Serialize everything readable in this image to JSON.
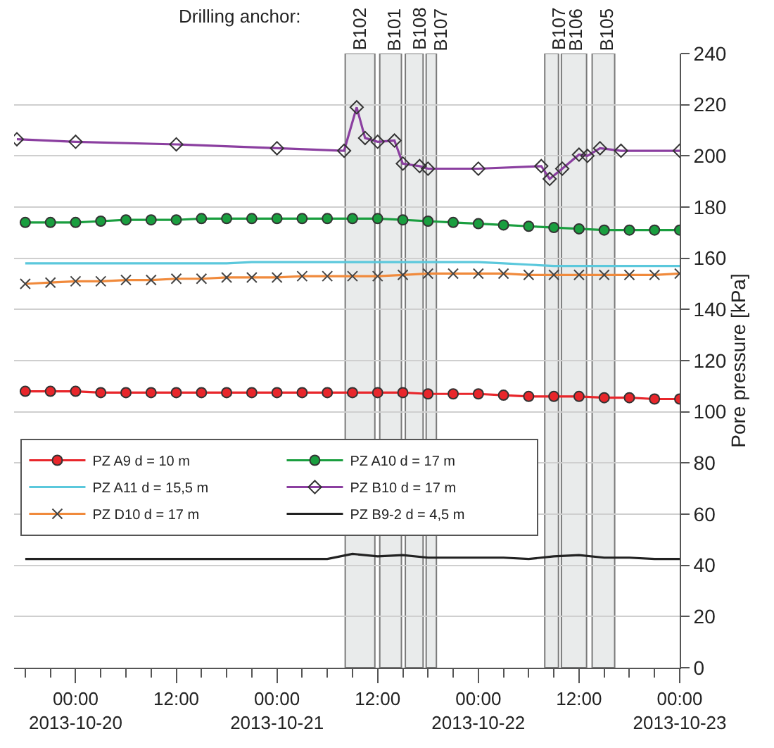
{
  "chart_data": {
    "type": "line",
    "ylabel": "Pore pressure [kPa]",
    "x": [
      "2013-10-19T18:00",
      "2013-10-19T21:00",
      "2013-10-20T00:00",
      "2013-10-20T03:00",
      "2013-10-20T06:00",
      "2013-10-20T09:00",
      "2013-10-20T12:00",
      "2013-10-20T15:00",
      "2013-10-20T18:00",
      "2013-10-20T21:00",
      "2013-10-21T00:00",
      "2013-10-21T03:00",
      "2013-10-21T06:00",
      "2013-10-21T09:00",
      "2013-10-21T12:00",
      "2013-10-21T15:00",
      "2013-10-21T18:00",
      "2013-10-21T21:00",
      "2013-10-22T00:00",
      "2013-10-22T03:00",
      "2013-10-22T06:00",
      "2013-10-22T09:00",
      "2013-10-22T12:00",
      "2013-10-22T15:00",
      "2013-10-22T18:00",
      "2013-10-22T21:00",
      "2013-10-23T00:00"
    ],
    "series": [
      {
        "name": "PZ A9 d = 10 m",
        "color": "#e8262b",
        "marker": "circle",
        "values": [
          108,
          108,
          108,
          107.5,
          107.5,
          107.5,
          107.5,
          107.5,
          107.5,
          107.5,
          107.5,
          107.5,
          107.5,
          107.5,
          107.5,
          107.5,
          107,
          107,
          107,
          106.5,
          106,
          106,
          106,
          105.5,
          105.5,
          105,
          105
        ]
      },
      {
        "name": "PZ A10 d = 17 m",
        "color": "#1a9e3f",
        "marker": "circle",
        "values": [
          174,
          174,
          174,
          174.5,
          175,
          175,
          175,
          175.5,
          175.5,
          175.5,
          175.5,
          175.5,
          175.5,
          175.5,
          175.5,
          175,
          174.5,
          174,
          173.5,
          173,
          172.5,
          172,
          171.5,
          171,
          171,
          171,
          171
        ]
      },
      {
        "name": "PZ A11 d = 15,5 m",
        "color": "#5bc8dc",
        "marker": "none",
        "values": [
          158,
          158,
          158,
          158,
          158,
          158,
          158,
          158,
          158,
          158.5,
          158.5,
          158.5,
          158.5,
          158.5,
          158.5,
          158.5,
          158.5,
          158.5,
          158.5,
          158,
          157.5,
          157,
          157,
          157,
          157,
          157,
          157
        ]
      },
      {
        "name": "PZ B10 d = 17 m",
        "color": "#8b3fa0",
        "marker": "diamond",
        "x": [
          "2013-10-19T17:00",
          "2013-10-20T00:00",
          "2013-10-20T12:00",
          "2013-10-21T00:00",
          "2013-10-21T08:00",
          "2013-10-21T09:30",
          "2013-10-21T10:30",
          "2013-10-21T12:00",
          "2013-10-21T14:00",
          "2013-10-21T15:00",
          "2013-10-21T17:00",
          "2013-10-21T18:00",
          "2013-10-22T00:00",
          "2013-10-22T07:30",
          "2013-10-22T08:30",
          "2013-10-22T10:00",
          "2013-10-22T12:00",
          "2013-10-22T13:00",
          "2013-10-22T14:30",
          "2013-10-22T17:00",
          "2013-10-23T00:00"
        ],
        "values": [
          206.5,
          205.5,
          204.5,
          203,
          202,
          219,
          207,
          205.5,
          206,
          197,
          196,
          195,
          195,
          196,
          191,
          195,
          200.5,
          200,
          203,
          202,
          202
        ]
      },
      {
        "name": "PZ D10 d = 17 m",
        "color": "#f08a3c",
        "marker": "cross",
        "values": [
          150,
          150.5,
          151,
          151,
          151.5,
          151.5,
          152,
          152,
          152.5,
          152.5,
          152.5,
          153,
          153,
          153,
          153,
          153.5,
          154,
          154,
          154,
          154,
          153.5,
          153.5,
          153.5,
          153.5,
          153.5,
          153.5,
          154
        ]
      },
      {
        "name": "PZ B9-2 d = 4,5 m",
        "color": "#222222",
        "marker": "none",
        "values": [
          42.5,
          42.5,
          42.5,
          42.5,
          42.5,
          42.5,
          42.5,
          42.5,
          42.5,
          42.5,
          42.5,
          42.5,
          42.5,
          44.5,
          43.5,
          44,
          43,
          43,
          43,
          43,
          42.5,
          43.5,
          44,
          43,
          43,
          42.5,
          42.5
        ]
      }
    ],
    "xlim": [
      "2013-10-19T16:40",
      "2013-10-23T00:00"
    ],
    "xticks": [
      {
        "value": "2013-10-20T00:00",
        "label": "00:00\n2013-10-20"
      },
      {
        "value": "2013-10-20T12:00",
        "label": "12:00"
      },
      {
        "value": "2013-10-21T00:00",
        "label": "00:00\n2013-10-21"
      },
      {
        "value": "2013-10-21T12:00",
        "label": "12:00"
      },
      {
        "value": "2013-10-22T00:00",
        "label": "00:00\n2013-10-22"
      },
      {
        "value": "2013-10-22T12:00",
        "label": "12:00"
      },
      {
        "value": "2013-10-23T00:00",
        "label": "00:00\n2013-10-23"
      },
      {
        "value": "2013-10-19T18:00",
        "label": null
      },
      {
        "value": "2013-10-19T21:00",
        "label": null
      },
      {
        "value": "2013-10-20T03:00",
        "label": null
      },
      {
        "value": "2013-10-20T06:00",
        "label": null
      },
      {
        "value": "2013-10-20T09:00",
        "label": null
      },
      {
        "value": "2013-10-20T15:00",
        "label": null
      },
      {
        "value": "2013-10-20T18:00",
        "label": null
      },
      {
        "value": "2013-10-20T21:00",
        "label": null
      },
      {
        "value": "2013-10-21T03:00",
        "label": null
      },
      {
        "value": "2013-10-21T06:00",
        "label": null
      },
      {
        "value": "2013-10-21T09:00",
        "label": null
      },
      {
        "value": "2013-10-21T15:00",
        "label": null
      },
      {
        "value": "2013-10-21T18:00",
        "label": null
      },
      {
        "value": "2013-10-21T21:00",
        "label": null
      },
      {
        "value": "2013-10-22T03:00",
        "label": null
      },
      {
        "value": "2013-10-22T06:00",
        "label": null
      },
      {
        "value": "2013-10-22T09:00",
        "label": null
      },
      {
        "value": "2013-10-22T15:00",
        "label": null
      },
      {
        "value": "2013-10-22T18:00",
        "label": null
      },
      {
        "value": "2013-10-22T21:00",
        "label": null
      }
    ],
    "ylim": [
      0,
      240
    ],
    "yticks": [
      0,
      20,
      40,
      60,
      80,
      100,
      120,
      140,
      160,
      180,
      200,
      220,
      240
    ],
    "grid": "y",
    "legend": "bottom left",
    "line_style": "solid",
    "bands": [
      {
        "axis": "x",
        "from": "2013-10-21T08:08",
        "to": "2013-10-21T11:40",
        "label": "B102",
        "color": "#e9ebeb"
      },
      {
        "axis": "x",
        "from": "2013-10-21T12:15",
        "to": "2013-10-21T14:50",
        "label": "B101",
        "color": "#e9ebeb"
      },
      {
        "axis": "x",
        "from": "2013-10-21T15:18",
        "to": "2013-10-21T17:25",
        "label": "B108",
        "color": "#e9ebeb"
      },
      {
        "axis": "x",
        "from": "2013-10-21T17:47",
        "to": "2013-10-21T19:00",
        "label": "B107",
        "color": "#e9ebeb"
      },
      {
        "axis": "x",
        "from": "2013-10-22T07:55",
        "to": "2013-10-22T09:33",
        "label": "B107",
        "color": "#e9ebeb"
      },
      {
        "axis": "x",
        "from": "2013-10-22T09:54",
        "to": "2013-10-22T12:54",
        "label": "B106",
        "color": "#e9ebeb"
      },
      {
        "axis": "x",
        "from": "2013-10-22T13:34",
        "to": "2013-10-22T16:15",
        "label": "B105",
        "color": "#e9ebeb"
      }
    ],
    "annotations": [
      "Drilling anchor:"
    ]
  }
}
